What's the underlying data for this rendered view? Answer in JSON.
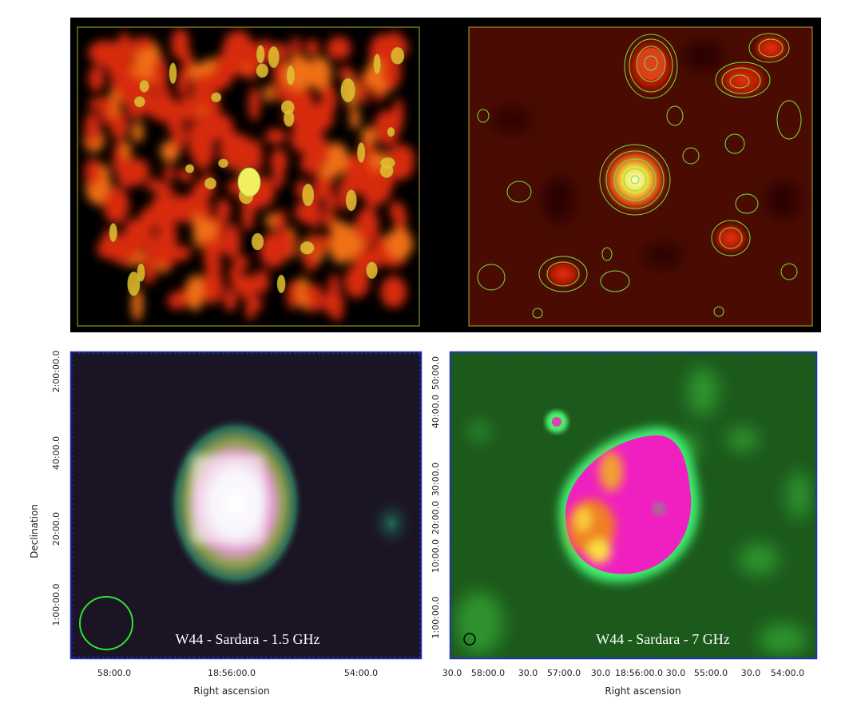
{
  "panels": [
    {
      "label": "W44 - Sardara - 1.5 GHz",
      "x_axis_label": "Right ascension",
      "y_axis_label": "Declination",
      "x_ticks": [
        "58:00.0",
        "18:56:00.0",
        "54:00.0"
      ],
      "y_ticks": [
        "2:00:00.0",
        "40:00.0",
        "20:00.0",
        "1:00:00.0"
      ]
    },
    {
      "label": "W44 - Sardara - 7 GHz",
      "x_axis_label": "Right ascension",
      "x_ticks": [
        "30.0",
        "58:00.0",
        "30.0",
        "57:00.0",
        "30.0",
        "18:56:00.0",
        "30.0",
        "55:00.0",
        "30.0",
        "54:00.0"
      ],
      "y_ticks": [
        "50:00.0",
        "40:00.0",
        "30:00.0",
        "20:00.0",
        "10:00.0",
        "1:00:00.0"
      ]
    }
  ]
}
